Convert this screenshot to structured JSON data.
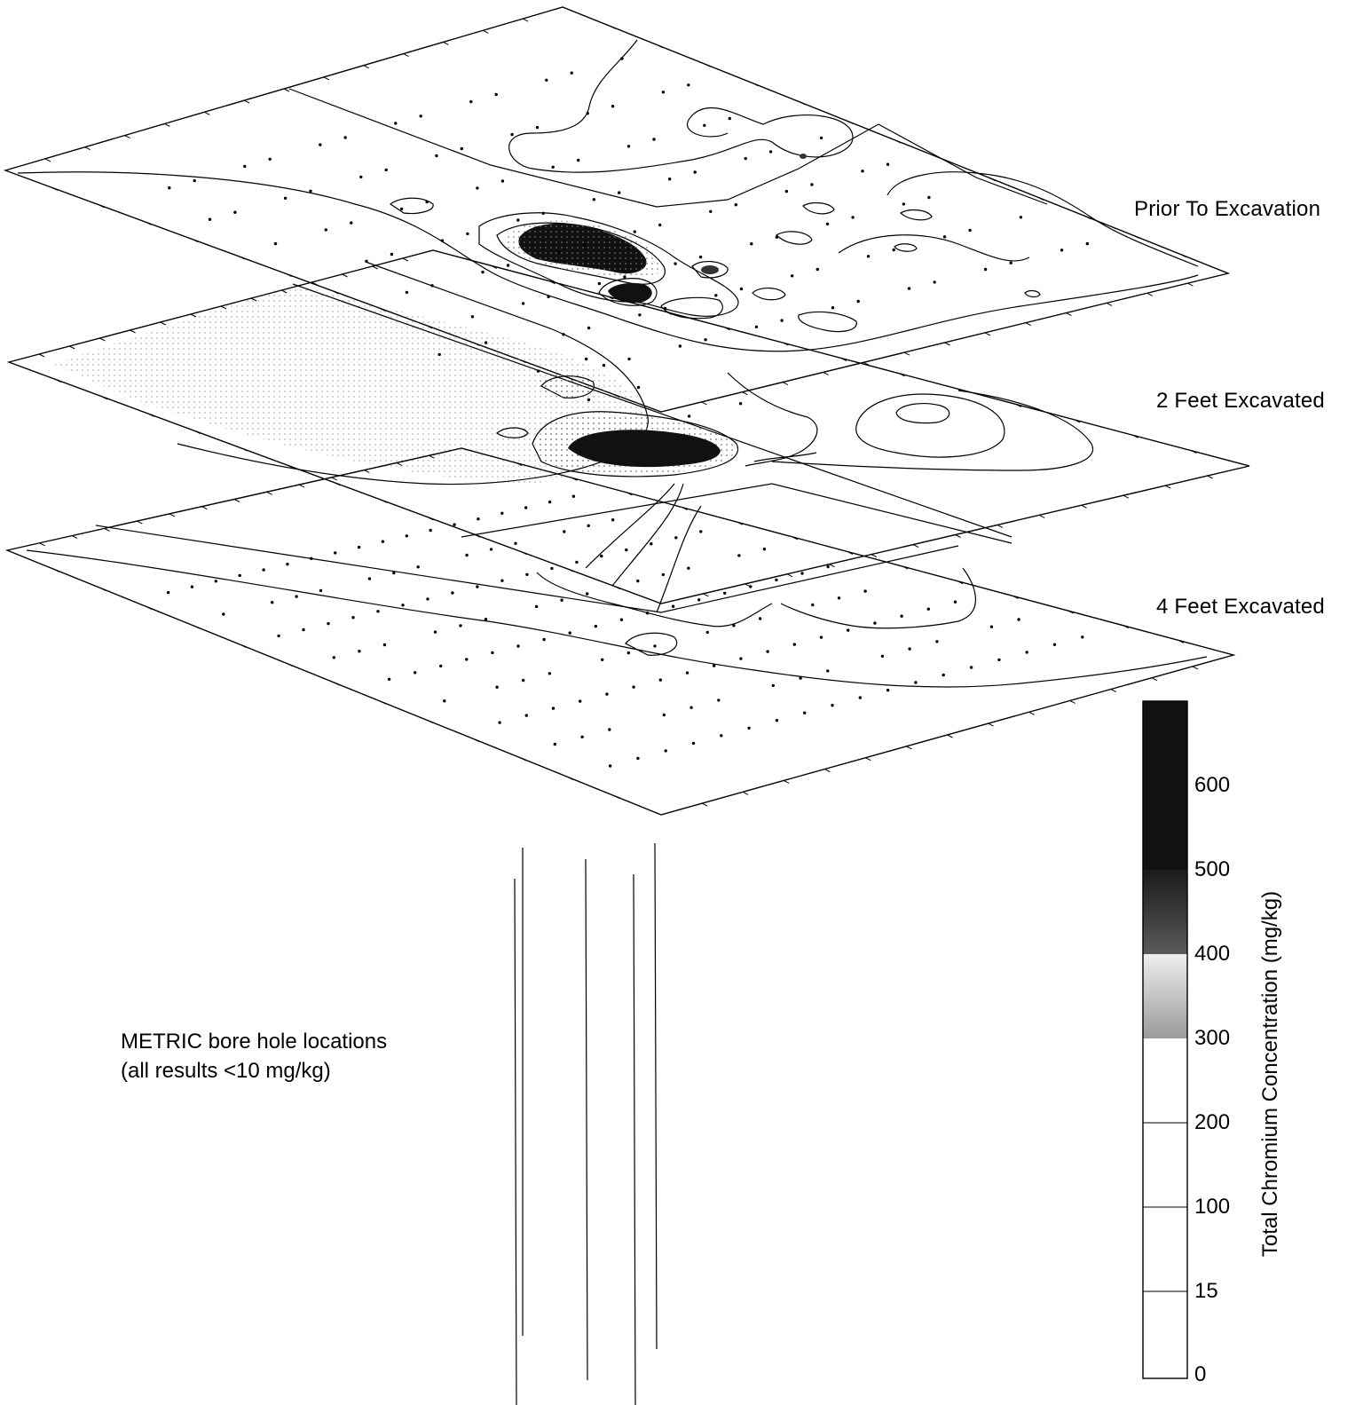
{
  "layers": [
    {
      "label": "Prior To Excavation"
    },
    {
      "label": "2 Feet Excavated"
    },
    {
      "label": "4 Feet Excavated"
    }
  ],
  "note": {
    "line1": "METRIC bore hole locations",
    "line2": "(all results <10 mg/kg)"
  },
  "colorbar": {
    "title": "Total Chromium Concentration (mg/kg)",
    "ticks": [
      "600",
      "500",
      "400",
      "300",
      "200",
      "100",
      "15",
      "0"
    ],
    "colors": {
      "dark": "#111111",
      "mid_dark": "#555555",
      "mid": "#b5b5b5",
      "light": "#ffffff"
    }
  }
}
